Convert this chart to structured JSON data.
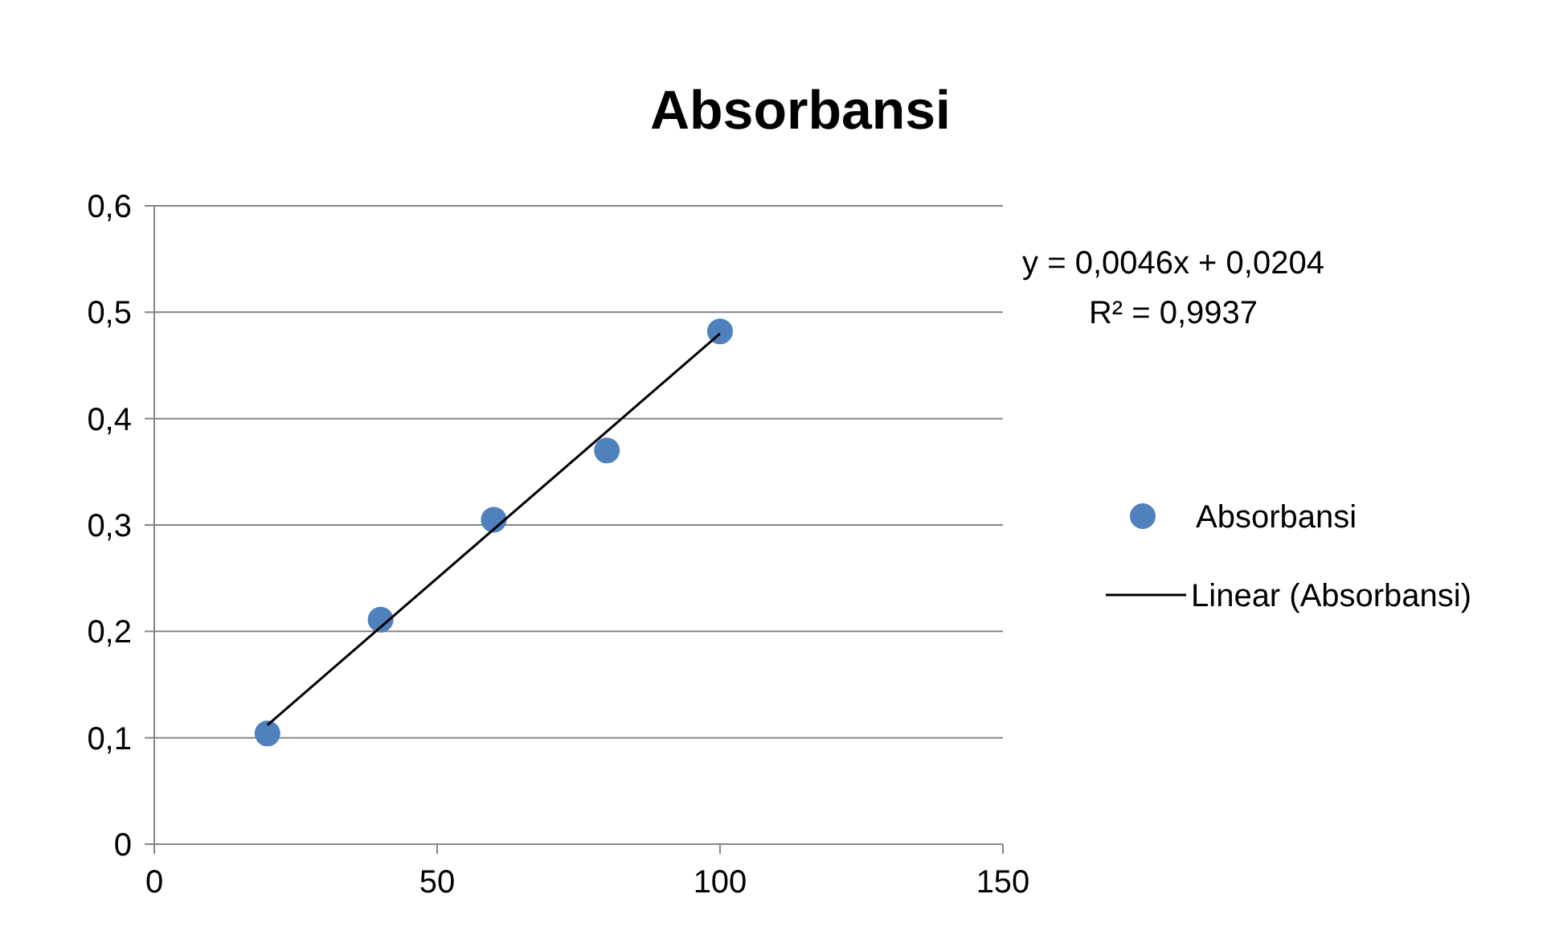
{
  "chart_data": {
    "type": "scatter",
    "title": "Absorbansi",
    "x": [
      20,
      40,
      60,
      80,
      100
    ],
    "series": [
      {
        "name": "Absorbansi",
        "marker": "circle",
        "color": "#4f81bd",
        "values": [
          0.104,
          0.211,
          0.305,
          0.37,
          0.482
        ]
      },
      {
        "name": "Linear (Absorbansi)",
        "type": "line",
        "color": "#000000",
        "x": [
          20,
          100
        ],
        "values": [
          0.112,
          0.48
        ]
      }
    ],
    "xlim": [
      0,
      150
    ],
    "xticks": [
      0,
      50,
      100,
      150
    ],
    "ylim": [
      0,
      0.6
    ],
    "yticks": [
      0,
      {
        "value": 0.1,
        "label": "0,1"
      },
      {
        "value": 0.2,
        "label": "0,2"
      },
      {
        "value": 0.3,
        "label": "0,3"
      },
      {
        "value": 0.4,
        "label": "0,4"
      },
      {
        "value": 0.5,
        "label": "0,5"
      },
      {
        "value": 0.6,
        "label": "0,6"
      }
    ],
    "grid": "y",
    "legend": "right",
    "annotations": [
      "y = 0,0046x + 0,0204",
      "R² = 0,9937"
    ]
  }
}
